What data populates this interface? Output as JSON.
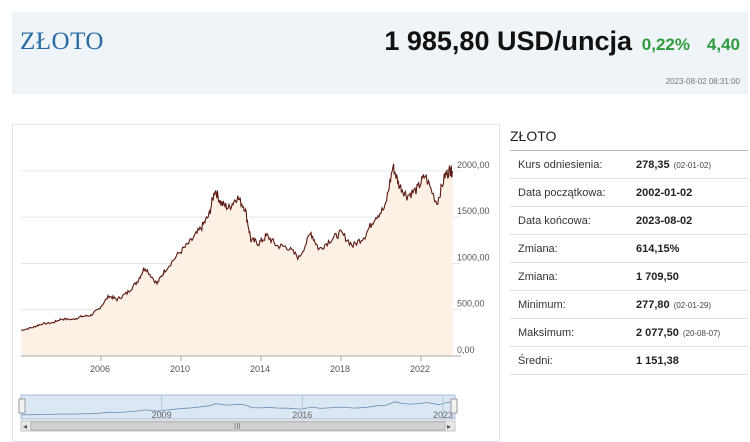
{
  "header": {
    "title": "ZŁOTO",
    "price": "1 985,80 USD/uncja",
    "change_pct": "0,22%",
    "change_abs": "4,40",
    "timestamp": "2023-08-02 08:31:00"
  },
  "chart_data": {
    "type": "area",
    "title": "",
    "xlabel": "",
    "ylabel": "",
    "x_ticks": [
      "2006",
      "2010",
      "2014",
      "2018",
      "2022"
    ],
    "y_ticks": [
      "0,00",
      "500,00",
      "1000,00",
      "1500,00",
      "2000,00"
    ],
    "ylim": [
      0,
      2150
    ],
    "xlim": [
      2002.0,
      2023.6
    ],
    "grid": true,
    "series": [
      {
        "values": [
          [
            2002.0,
            278
          ],
          [
            2002.6,
            310
          ],
          [
            2003.0,
            345
          ],
          [
            2003.6,
            360
          ],
          [
            2004.0,
            400
          ],
          [
            2004.6,
            395
          ],
          [
            2005.0,
            425
          ],
          [
            2005.5,
            440
          ],
          [
            2005.9,
            510
          ],
          [
            2006.4,
            650
          ],
          [
            2006.8,
            610
          ],
          [
            2007.3,
            680
          ],
          [
            2007.8,
            800
          ],
          [
            2008.2,
            960
          ],
          [
            2008.8,
            780
          ],
          [
            2009.2,
            930
          ],
          [
            2009.9,
            1110
          ],
          [
            2010.5,
            1240
          ],
          [
            2011.0,
            1380
          ],
          [
            2011.4,
            1520
          ],
          [
            2011.7,
            1800
          ],
          [
            2012.0,
            1650
          ],
          [
            2012.4,
            1600
          ],
          [
            2012.8,
            1720
          ],
          [
            2013.2,
            1600
          ],
          [
            2013.5,
            1250
          ],
          [
            2013.9,
            1220
          ],
          [
            2014.3,
            1300
          ],
          [
            2014.8,
            1190
          ],
          [
            2015.3,
            1180
          ],
          [
            2015.9,
            1060
          ],
          [
            2016.5,
            1330
          ],
          [
            2016.9,
            1150
          ],
          [
            2017.5,
            1260
          ],
          [
            2018.0,
            1330
          ],
          [
            2018.6,
            1190
          ],
          [
            2019.2,
            1300
          ],
          [
            2019.7,
            1500
          ],
          [
            2020.2,
            1600
          ],
          [
            2020.6,
            2050
          ],
          [
            2020.9,
            1850
          ],
          [
            2021.3,
            1730
          ],
          [
            2021.8,
            1800
          ],
          [
            2022.2,
            1950
          ],
          [
            2022.8,
            1650
          ],
          [
            2023.2,
            1950
          ],
          [
            2023.45,
            2010
          ],
          [
            2023.58,
            1985
          ]
        ]
      }
    ]
  },
  "navigator": {
    "labels": [
      "2009",
      "2016",
      "2023"
    ],
    "scroll_icon": "grip-lines-icon"
  },
  "info": {
    "title": "ZŁOTO",
    "rows": [
      {
        "label": "Kurs odniesienia:",
        "value": "278,35",
        "sub": "(02-01-02)"
      },
      {
        "label": "Data początkowa:",
        "value": "2002-01-02",
        "sub": ""
      },
      {
        "label": "Data końcowa:",
        "value": "2023-08-02",
        "sub": ""
      },
      {
        "label": "Zmiana:",
        "value": "614,15%",
        "sub": ""
      },
      {
        "label": "Zmiana:",
        "value": "1 709,50",
        "sub": ""
      },
      {
        "label": "Minimum:",
        "value": "277,80",
        "sub": "(02-01-29)"
      },
      {
        "label": "Maksimum:",
        "value": "2 077,50",
        "sub": "(20-08-07)"
      },
      {
        "label": "Średni:",
        "value": "1 151,38",
        "sub": ""
      }
    ]
  },
  "colors": {
    "title": "#2a6ca3",
    "positive": "#2e9b3e",
    "line": "#5c1a14",
    "area": "#fdf1e6",
    "header_bg": "#eef4f8"
  }
}
